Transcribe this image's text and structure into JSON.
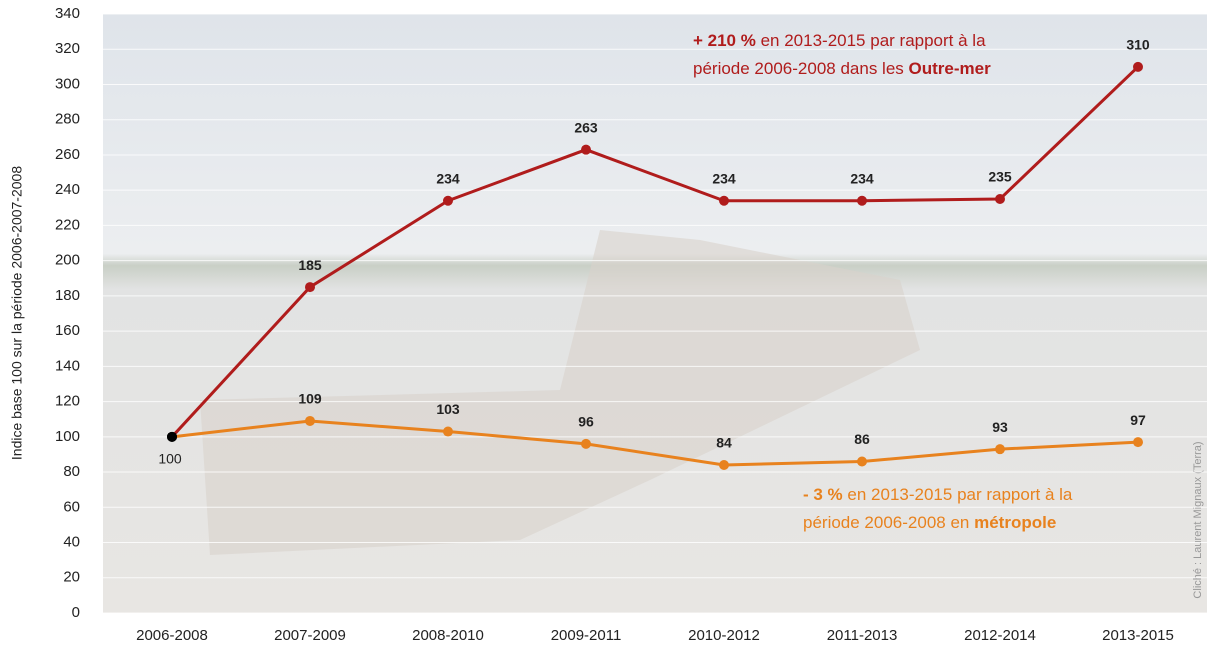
{
  "chart_data": {
    "type": "line",
    "y_label": "Indice base 100 sur la période 2006-2007-2008",
    "categories": [
      "2006-2008",
      "2007-2009",
      "2008-2010",
      "2009-2011",
      "2010-2012",
      "2011-2013",
      "2012-2014",
      "2013-2015"
    ],
    "series": [
      {
        "color": "#b01c1c",
        "values": [
          100,
          185,
          234,
          263,
          234,
          234,
          235,
          310
        ]
      },
      {
        "color": "#e8821e",
        "values": [
          100,
          109,
          103,
          96,
          84,
          86,
          93,
          97
        ]
      }
    ],
    "start_point_color": "#000000",
    "ylim": [
      0,
      340
    ],
    "yticks": [
      0,
      20,
      40,
      60,
      80,
      100,
      120,
      140,
      160,
      180,
      200,
      220,
      240,
      260,
      280,
      300,
      320,
      340
    ],
    "grid": true,
    "annotations": [
      {
        "color": "#b01c1c",
        "lines": [
          [
            {
              "text": "+ 210 %",
              "bold": true
            },
            {
              "text": " en 2013-2015 par rapport à la",
              "bold": false
            }
          ],
          [
            {
              "text": "période  2006-2008 dans les ",
              "bold": false
            },
            {
              "text": "Outre-mer",
              "bold": true
            }
          ]
        ]
      },
      {
        "color": "#e8821e",
        "lines": [
          [
            {
              "text": "- 3 %",
              "bold": true
            },
            {
              "text": " en 2013-2015 par rapport à la",
              "bold": false
            }
          ],
          [
            {
              "text": "période  2006-2008 en ",
              "bold": false
            },
            {
              "text": "métropole",
              "bold": true
            }
          ]
        ]
      }
    ],
    "credit": "Cliché : Laurent Mignaux (Terra)"
  }
}
